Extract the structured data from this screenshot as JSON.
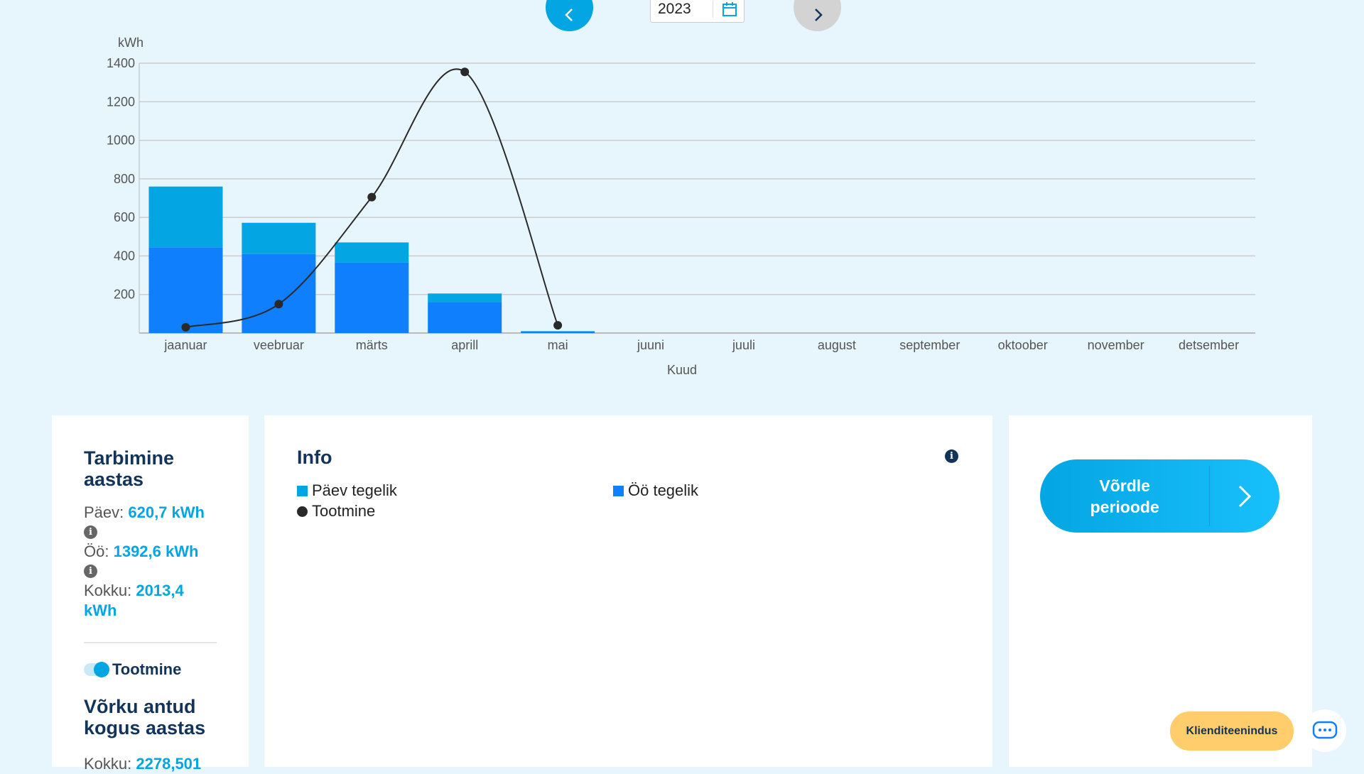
{
  "nav": {
    "year": "2023",
    "prev_icon": "chevron-left-icon",
    "next_icon": "chevron-right-icon",
    "calendar_icon": "calendar-icon"
  },
  "chart_data": {
    "type": "bar",
    "stacked": true,
    "ylabel": "kWh",
    "xlabel": "Kuud",
    "ylim": [
      0,
      1400
    ],
    "yticks": [
      200,
      400,
      600,
      800,
      1000,
      1200,
      1400
    ],
    "grid": true,
    "categories": [
      "jaanuar",
      "veebruar",
      "märts",
      "aprill",
      "mai",
      "juuni",
      "juuli",
      "august",
      "september",
      "oktoober",
      "november",
      "detsember"
    ],
    "series": [
      {
        "name": "Öö tegelik",
        "type": "bar",
        "color": "#0f7ffd",
        "values": [
          445,
          410,
          365,
          160,
          8,
          null,
          null,
          null,
          null,
          null,
          null,
          null
        ]
      },
      {
        "name": "Päev tegelik",
        "type": "bar",
        "color": "#04a5e3",
        "values": [
          315,
          162,
          105,
          45,
          2,
          null,
          null,
          null,
          null,
          null,
          null,
          null
        ]
      },
      {
        "name": "Tootmine",
        "type": "line",
        "color": "#2a2a2a",
        "values": [
          30,
          150,
          705,
          1355,
          40,
          null,
          null,
          null,
          null,
          null,
          null,
          null
        ]
      }
    ]
  },
  "summary": {
    "title": "Tarbimine aastas",
    "day_label": "Päev:",
    "day_value": "620,7 kWh",
    "night_label": "Öö:",
    "night_value": "1392,6 kWh",
    "total_label": "Kokku:",
    "total_value": "2013,4 kWh",
    "toggle_label": "Tootmine",
    "toggle_on": true,
    "grid_title": "Võrku antud kogus aastas",
    "grid_total_label": "Kokku:",
    "grid_total_value": "2278,501"
  },
  "info": {
    "title": "Info",
    "legend": [
      "Päev tegelik",
      "Öö tegelik",
      "Tootmine"
    ]
  },
  "compare": {
    "label": "Võrdle perioode"
  },
  "chat": {
    "label": "Klienditeenindus"
  }
}
